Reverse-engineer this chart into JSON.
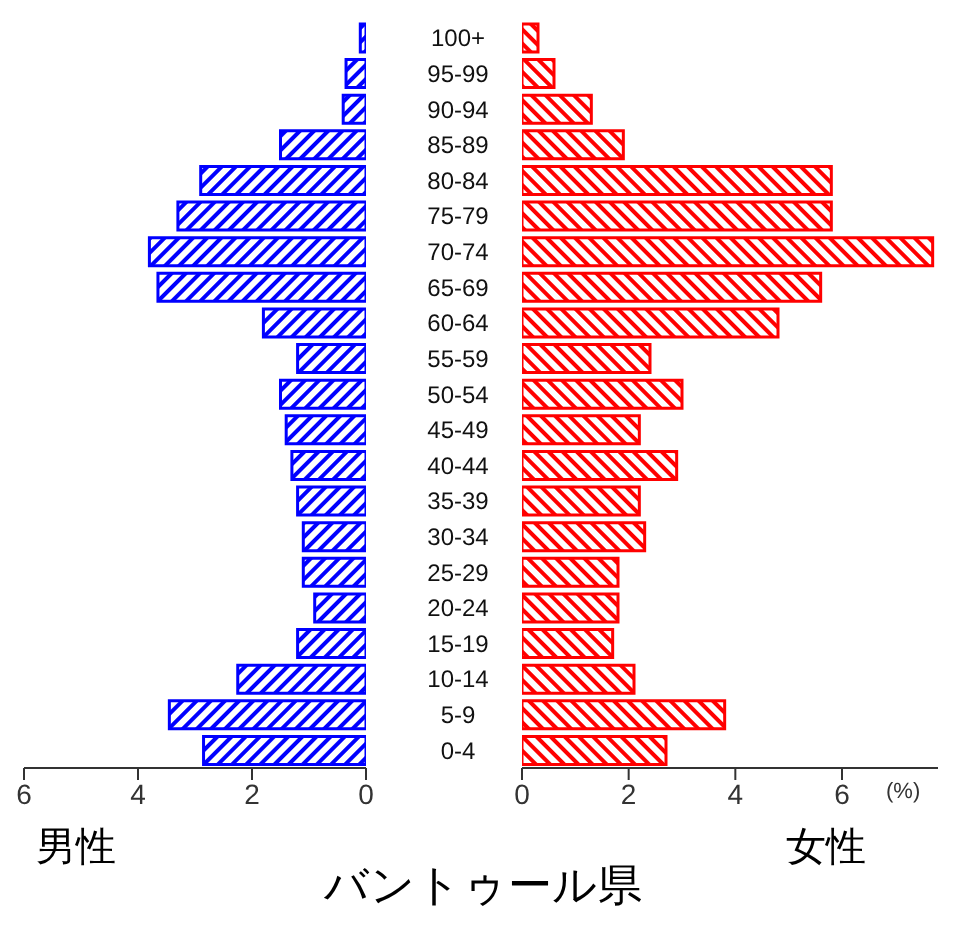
{
  "chart_data": [
    {
      "type": "bar",
      "orientation": "horizontal",
      "title": "バントゥール県",
      "xlabel": "男性",
      "categories": [
        "100+",
        "95-99",
        "90-94",
        "85-89",
        "80-84",
        "75-79",
        "70-74",
        "65-69",
        "60-64",
        "55-59",
        "50-54",
        "45-49",
        "40-44",
        "35-39",
        "30-34",
        "25-29",
        "20-24",
        "15-19",
        "10-14",
        "5-9",
        "0-4"
      ],
      "series": [
        {
          "color": "#0000ff",
          "values": [
            0.1,
            0.35,
            0.4,
            1.5,
            2.9,
            3.3,
            3.8,
            3.65,
            1.8,
            1.2,
            1.5,
            1.4,
            1.3,
            1.2,
            1.1,
            1.1,
            0.9,
            1.2,
            2.25,
            3.45,
            2.85
          ]
        }
      ],
      "xlim": [
        6,
        0
      ],
      "xticks": [
        6,
        4,
        2,
        0
      ]
    },
    {
      "type": "bar",
      "orientation": "horizontal",
      "xlabel": "女性",
      "annotations": [
        "(%)"
      ],
      "tick_labels": "x",
      "series": [
        {
          "color": "#ff0000",
          "values": [
            0.3,
            0.6,
            1.3,
            1.9,
            5.8,
            5.8,
            7.7,
            5.6,
            4.8,
            2.4,
            3.0,
            2.2,
            2.9,
            2.2,
            2.3,
            1.8,
            1.8,
            1.7,
            2.1,
            3.8,
            2.7
          ]
        }
      ],
      "xlim": [
        0,
        7.8
      ],
      "xticks": [
        0,
        2,
        4,
        6
      ]
    }
  ]
}
